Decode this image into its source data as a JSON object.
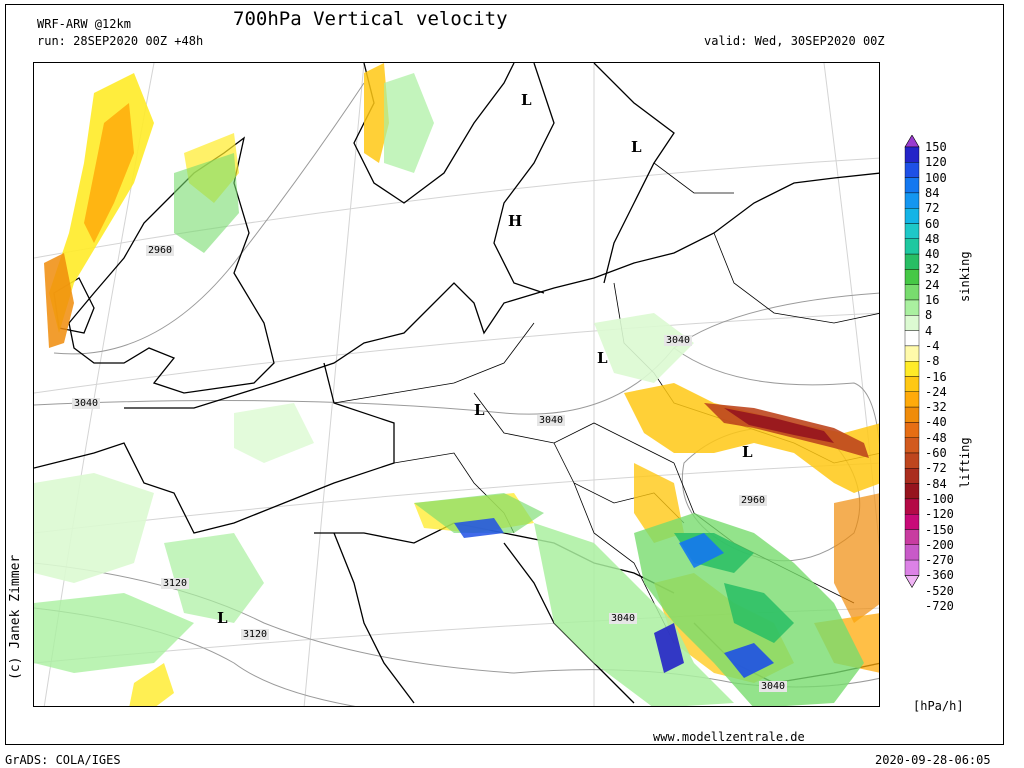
{
  "header": {
    "model": "WRF-ARW @12km",
    "run": "run: 28SEP2020 00Z +48h",
    "title": "700hPa Vertical velocity",
    "valid": "valid: Wed, 30SEP2020 00Z"
  },
  "legend": {
    "levels": [
      "150",
      "120",
      "100",
      "84",
      "72",
      "60",
      "48",
      "40",
      "32",
      "24",
      "16",
      "8",
      "4",
      "-4",
      "-8",
      "-16",
      "-24",
      "-32",
      "-40",
      "-48",
      "-60",
      "-72",
      "-84",
      "-100",
      "-120",
      "-150",
      "-200",
      "-270",
      "-360",
      "-520",
      "-720"
    ],
    "colors": [
      "#9a3ccf",
      "#2424c8",
      "#1e50e6",
      "#1478f0",
      "#1496f0",
      "#14b4e6",
      "#1ec8c8",
      "#1ec8a0",
      "#28be64",
      "#46c846",
      "#78dc6e",
      "#aaf0a0",
      "#dcfad2",
      "#ffffff",
      "#fffaaa",
      "#ffeb28",
      "#ffc814",
      "#ffaa0a",
      "#f08c0a",
      "#e66e14",
      "#d25a1e",
      "#be461e",
      "#aa2d1e",
      "#96141e",
      "#b40a46",
      "#c80a78",
      "#c83ca0",
      "#c85ac8",
      "#dc82e6",
      "#f0b4f5"
    ],
    "label_sinking": "sinking",
    "label_lifting": "lifting",
    "unit": "[hPa/h]"
  },
  "map": {
    "pressure_centers": [
      {
        "symbol": "L"
      },
      {
        "symbol": "L"
      },
      {
        "symbol": "H"
      },
      {
        "symbol": "L"
      },
      {
        "symbol": "L"
      },
      {
        "symbol": "L"
      },
      {
        "symbol": "L"
      }
    ],
    "contour_labels": [
      "2960",
      "3040",
      "3040",
      "3040",
      "2960",
      "3120",
      "3120",
      "3040",
      "3040"
    ]
  },
  "footer": {
    "copyright": "(c) Janek Zimmer",
    "website": "www.modellzentrale.de",
    "software": "GrADS: COLA/IGES",
    "timestamp": "2020-09-28-06:05"
  }
}
